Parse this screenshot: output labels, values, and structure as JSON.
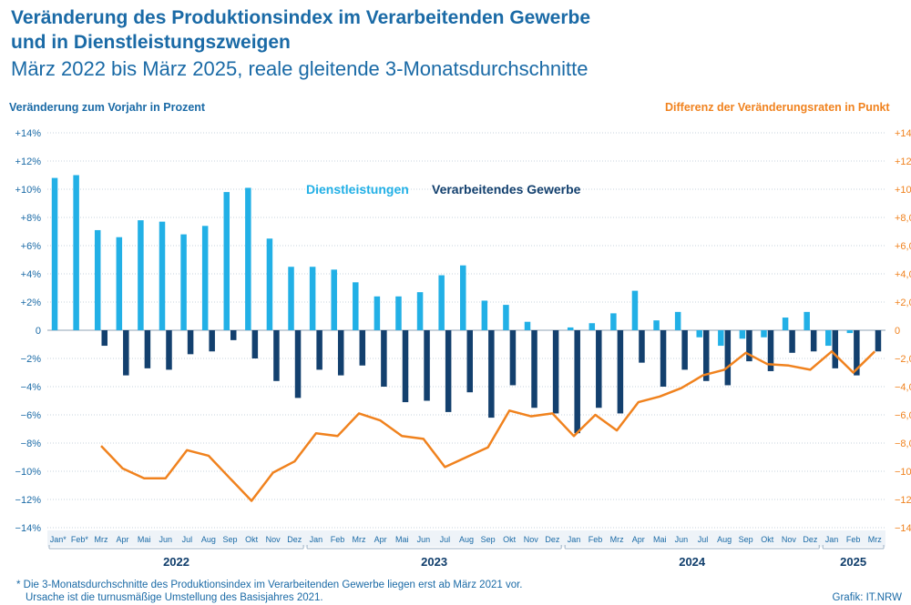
{
  "header": {
    "title_line1": "Veränderung des Produktionsindex im Verarbeitenden Gewerbe",
    "title_line2": "und in Dienstleistungszweigen",
    "subtitle": "März 2022 bis März 2025, reale gleitende 3-Monatsdurchschnitte"
  },
  "footer": {
    "footnote_line1": "* Die 3-Monatsdurchschnitte des Produktionsindex im Verarbeitenden Gewerbe liegen erst ab März 2021 vor.",
    "footnote_line2": "Ursache ist die turnusmäßige Umstellung des Basisjahres 2021.",
    "credit": "Grafik: IT.NRW"
  },
  "colors": {
    "services": "#22b0e6",
    "manufacturing": "#13406e",
    "difference": "#f0821e",
    "axis_text": "#1a6aa6",
    "grid": "#c7d3de"
  },
  "chart_data": {
    "type": "bar",
    "ylabel_left": "Veränderung zum Vorjahr in Prozent",
    "ylabel_right": "Differenz der Veränderungsraten in Punkt",
    "ylim": [
      -14,
      14
    ],
    "yticks_left": [
      "+14%",
      "+12%",
      "+10%",
      "+8%",
      "+6%",
      "+4%",
      "+2%",
      "0",
      "−2%",
      "−4%",
      "−6%",
      "−8%",
      "−10%",
      "−12%",
      "−14%"
    ],
    "yticks_right": [
      "+14",
      "+12",
      "+10",
      "+8,0",
      "+6,0",
      "+4,0",
      "+2,0",
      "0",
      "−2,0",
      "−4,0",
      "−6,0",
      "−8,0",
      "−10",
      "−12",
      "−14"
    ],
    "categories": [
      "Jan*",
      "Feb*",
      "Mrz",
      "Apr",
      "Mai",
      "Jun",
      "Jul",
      "Aug",
      "Sep",
      "Okt",
      "Nov",
      "Dez",
      "Jan",
      "Feb",
      "Mrz",
      "Apr",
      "Mai",
      "Jun",
      "Jul",
      "Aug",
      "Sep",
      "Okt",
      "Nov",
      "Dez",
      "Jan",
      "Feb",
      "Mrz",
      "Apr",
      "Mai",
      "Jun",
      "Jul",
      "Aug",
      "Sep",
      "Okt",
      "Nov",
      "Dez",
      "Jan",
      "Feb",
      "Mrz"
    ],
    "years": [
      {
        "label": "2022",
        "start": 0,
        "end": 11
      },
      {
        "label": "2023",
        "start": 12,
        "end": 23
      },
      {
        "label": "2024",
        "start": 24,
        "end": 35
      },
      {
        "label": "2025",
        "start": 36,
        "end": 38
      }
    ],
    "series": [
      {
        "name": "Dienstleistungen",
        "type": "bar",
        "values": [
          10.8,
          11.0,
          7.1,
          6.6,
          7.8,
          7.7,
          6.8,
          7.4,
          9.8,
          10.1,
          6.5,
          4.5,
          4.5,
          4.3,
          3.4,
          2.4,
          2.4,
          2.7,
          3.9,
          4.6,
          2.1,
          1.8,
          0.6,
          0.0,
          0.2,
          0.5,
          1.2,
          2.8,
          0.7,
          1.3,
          -0.5,
          -1.1,
          -0.6,
          -0.5,
          0.9,
          1.3,
          -1.1,
          -0.2,
          0.0
        ]
      },
      {
        "name": "Verarbeitendes Gewerbe",
        "type": "bar",
        "values": [
          null,
          null,
          -1.1,
          -3.2,
          -2.7,
          -2.8,
          -1.7,
          -1.5,
          -0.7,
          -2.0,
          -3.6,
          -4.8,
          -2.8,
          -3.2,
          -2.5,
          -4.0,
          -5.1,
          -5.0,
          -5.8,
          -4.4,
          -6.2,
          -3.9,
          -5.5,
          -5.9,
          -7.3,
          -5.5,
          -5.9,
          -2.3,
          -4.0,
          -2.8,
          -3.6,
          -3.9,
          -2.2,
          -2.9,
          -1.6,
          -1.5,
          -2.7,
          -3.2,
          -1.5
        ]
      },
      {
        "name": "Differenz",
        "type": "line",
        "values": [
          null,
          null,
          -8.2,
          -9.8,
          -10.5,
          -10.5,
          -8.5,
          -8.9,
          -10.5,
          -12.1,
          -10.1,
          -9.3,
          -7.3,
          -7.5,
          -5.9,
          -6.4,
          -7.5,
          -7.7,
          -9.7,
          -9.0,
          -8.3,
          -5.7,
          -6.1,
          -5.9,
          -7.5,
          -6.0,
          -7.1,
          -5.1,
          -4.7,
          -4.1,
          -3.2,
          -2.8,
          -1.6,
          -2.4,
          -2.5,
          -2.8,
          -1.5,
          -3.0,
          -1.5
        ]
      }
    ]
  }
}
